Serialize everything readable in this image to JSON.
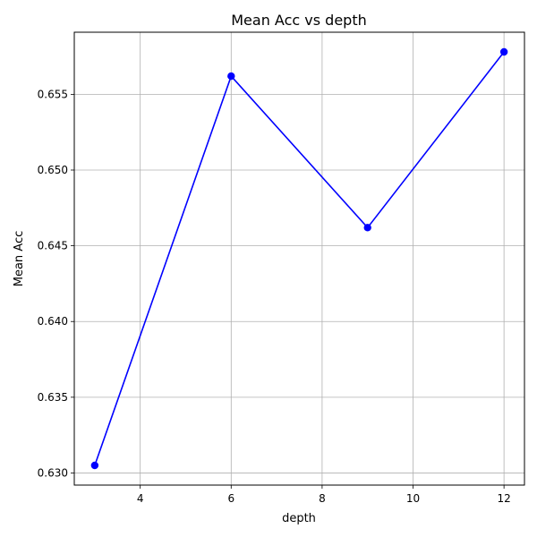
{
  "chart_data": {
    "type": "line",
    "title": "Mean Acc vs depth",
    "xlabel": "depth",
    "ylabel": "Mean Acc",
    "x": [
      3,
      6,
      9,
      12
    ],
    "series": [
      {
        "values": [
          0.6305,
          0.6562,
          0.6462,
          0.6578
        ],
        "color": "#0000ff",
        "marker": "circle"
      }
    ],
    "xlim": [
      2.55,
      12.45
    ],
    "ylim": [
      0.6292,
      0.6591
    ],
    "xticks": [
      4,
      6,
      8,
      10,
      12
    ],
    "xtick_labels": [
      "4",
      "6",
      "8",
      "10",
      "12"
    ],
    "yticks": [
      0.63,
      0.635,
      0.64,
      0.645,
      0.65,
      0.655
    ],
    "ytick_labels": [
      "0.630",
      "0.635",
      "0.640",
      "0.645",
      "0.650",
      "0.655"
    ],
    "grid": true
  }
}
